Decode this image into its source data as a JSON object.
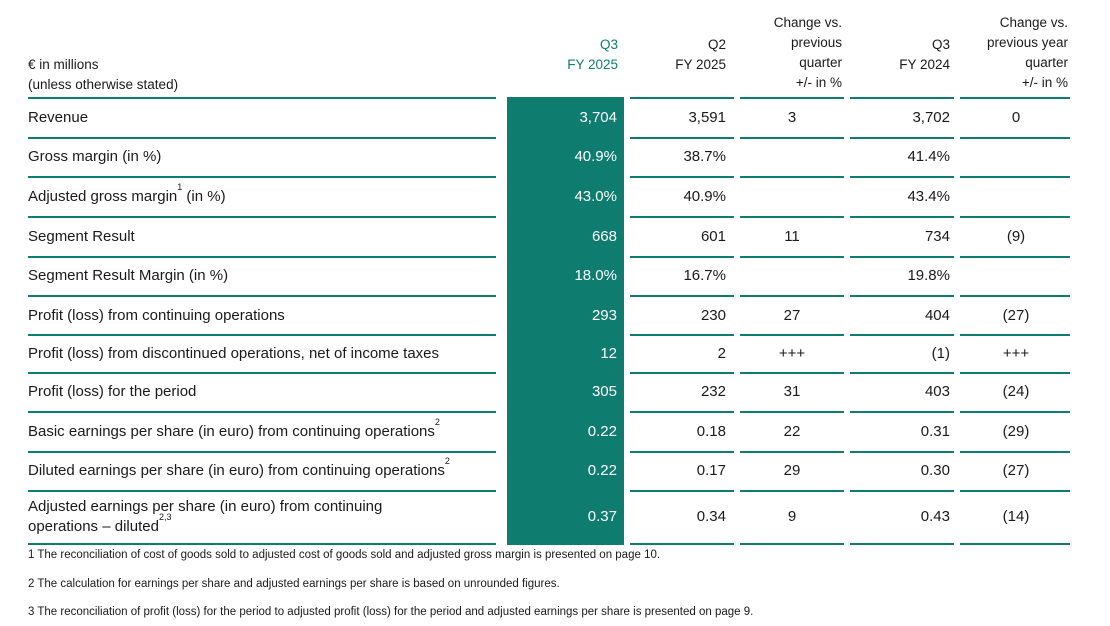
{
  "header": {
    "unit_line1": "€ in millions",
    "unit_line2": "(unless otherwise stated)",
    "col1_line1": "Q3",
    "col1_line2": "FY 2025",
    "col2_line1": "Q2",
    "col2_line2": "FY 2025",
    "col3_line1": "Change vs.",
    "col3_line2": "previous",
    "col3_line3": "quarter",
    "col3_line4": "+/- in %",
    "col4_line1": "Q3",
    "col4_line2": "FY 2024",
    "col5_line1": "Change vs.",
    "col5_line2": "previous year",
    "col5_line3": "quarter",
    "col5_line4": "+/- in %"
  },
  "rows": [
    {
      "label": "Revenue",
      "sup": "",
      "q3_2025": "3,704",
      "q2_2025": "3,591",
      "chg_q": "3",
      "q3_2024": "3,702",
      "chg_y": "0"
    },
    {
      "label": "Gross margin (in %)",
      "sup": "",
      "q3_2025": "40.9%",
      "q2_2025": "38.7%",
      "chg_q": "",
      "q3_2024": "41.4%",
      "chg_y": ""
    },
    {
      "label_a": "Adjusted gross margin",
      "sup": "1",
      "label_b": " (in %)",
      "q3_2025": "43.0%",
      "q2_2025": "40.9%",
      "chg_q": "",
      "q3_2024": "43.4%",
      "chg_y": ""
    },
    {
      "label": "Segment Result",
      "sup": "",
      "q3_2025": "668",
      "q2_2025": "601",
      "chg_q": "11",
      "q3_2024": "734",
      "chg_y": "(9)"
    },
    {
      "label": "Segment Result Margin (in %)",
      "sup": "",
      "q3_2025": "18.0%",
      "q2_2025": "16.7%",
      "chg_q": "",
      "q3_2024": "19.8%",
      "chg_y": ""
    },
    {
      "label": "Profit (loss) from continuing operations",
      "sup": "",
      "q3_2025": "293",
      "q2_2025": "230",
      "chg_q": "27",
      "q3_2024": "404",
      "chg_y": "(27)"
    },
    {
      "label": "Profit (loss) from discontinued operations, net of income taxes",
      "sup": "",
      "q3_2025": "12",
      "q2_2025": "2",
      "chg_q": "+++",
      "q3_2024": "(1)",
      "chg_y": "+++"
    },
    {
      "label": "Profit (loss) for the period",
      "sup": "",
      "q3_2025": "305",
      "q2_2025": "232",
      "chg_q": "31",
      "q3_2024": "403",
      "chg_y": "(24)"
    },
    {
      "label": "Basic earnings per share (in euro) from continuing operations",
      "sup": "2",
      "q3_2025": "0.22",
      "q2_2025": "0.18",
      "chg_q": "22",
      "q3_2024": "0.31",
      "chg_y": "(29)"
    },
    {
      "label": "Diluted earnings per share (in euro) from continuing operations",
      "sup": "2",
      "q3_2025": "0.22",
      "q2_2025": "0.17",
      "chg_q": "29",
      "q3_2024": "0.30",
      "chg_y": "(27)"
    },
    {
      "label_line1": "Adjusted earnings per share (in euro) from continuing",
      "label_line2": "operations – diluted",
      "sup": "2,3",
      "q3_2025": "0.37",
      "q2_2025": "0.34",
      "chg_q": "9",
      "q3_2024": "0.43",
      "chg_y": "(14)"
    }
  ],
  "footnotes": [
    "1 The reconciliation of cost of goods sold to adjusted cost of goods sold and adjusted gross margin is presented on page 10.",
    "2 The calculation for earnings per share and adjusted earnings per share is based on unrounded figures.",
    "3 The reconciliation of profit (loss) for the period to adjusted profit (loss) for the period and adjusted earnings per share is presented on page 9."
  ],
  "colors": {
    "accent": "#0e7d70",
    "text": "#1a1a1a"
  }
}
